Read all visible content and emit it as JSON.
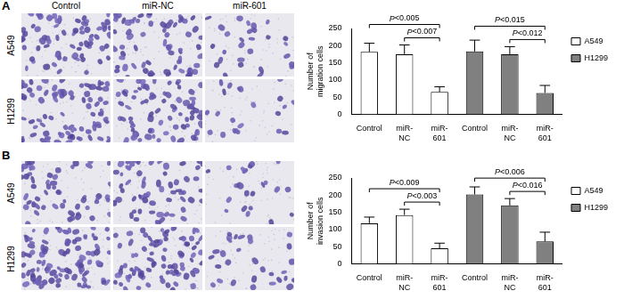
{
  "panels": [
    "A",
    "B"
  ],
  "image_grid": {
    "columns": [
      "Control",
      "miR-NC",
      "miR-601"
    ],
    "rows": [
      "A549",
      "H1299"
    ]
  },
  "chart_data": [
    {
      "type": "bar",
      "y_label": "Number of  migration cells",
      "categories": [
        "Control",
        "miR-NC",
        "miR-601",
        "Control",
        "miR-NC",
        "miR-601"
      ],
      "series": [
        {
          "name": "A549",
          "color": "#ffffff",
          "values": [
            182,
            175,
            65,
            null,
            null,
            null
          ],
          "errors": [
            25,
            27,
            15,
            null,
            null,
            null
          ]
        },
        {
          "name": "H1299",
          "color": "#808080",
          "values": [
            null,
            null,
            null,
            183,
            175,
            62
          ],
          "errors": [
            null,
            null,
            null,
            33,
            22,
            22
          ]
        }
      ],
      "ylim": [
        0,
        250
      ],
      "yticks": [
        0,
        50,
        100,
        150,
        200,
        250
      ],
      "grid": false,
      "legend": "right",
      "comparisons": [
        {
          "from": 0,
          "to": 2,
          "label": "P<0.005"
        },
        {
          "from": 1,
          "to": 2,
          "label": "P<0.007"
        },
        {
          "from": 3,
          "to": 5,
          "label": "P<0.015"
        },
        {
          "from": 4,
          "to": 5,
          "label": "P<0.012"
        }
      ]
    },
    {
      "type": "bar",
      "y_label": "Number of  invasion cells",
      "categories": [
        "Control",
        "miR-NC",
        "miR-601",
        "Control",
        "miR-NC",
        "miR-601"
      ],
      "series": [
        {
          "name": "A549",
          "color": "#ffffff",
          "values": [
            118,
            142,
            45,
            null,
            null,
            null
          ],
          "errors": [
            18,
            17,
            15,
            null,
            null,
            null
          ]
        },
        {
          "name": "H1299",
          "color": "#808080",
          "values": [
            null,
            null,
            null,
            202,
            170,
            65
          ],
          "errors": [
            null,
            null,
            null,
            22,
            20,
            27
          ]
        }
      ],
      "ylim": [
        0,
        250
      ],
      "yticks": [
        0,
        50,
        100,
        150,
        200,
        250
      ],
      "grid": false,
      "legend": "right",
      "comparisons": [
        {
          "from": 0,
          "to": 2,
          "label": "P<0.009"
        },
        {
          "from": 1,
          "to": 2,
          "label": "P<0.003"
        },
        {
          "from": 3,
          "to": 5,
          "label": "P<0.006"
        },
        {
          "from": 4,
          "to": 5,
          "label": "P<0.016"
        }
      ]
    }
  ]
}
